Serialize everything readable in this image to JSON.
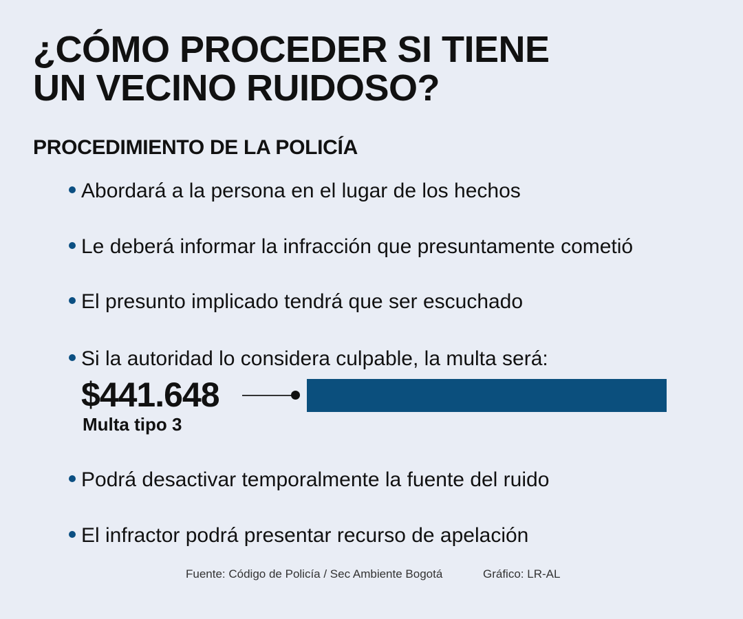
{
  "header": {
    "title_line1": "¿CÓMO PROCEDER SI TIENE",
    "title_line2": "UN VECINO RUIDOSO?",
    "subtitle": "PROCEDIMIENTO DE LA POLICÍA"
  },
  "procedure": {
    "items": [
      "Abordará a la persona en el lugar de los hechos",
      "Le deberá informar la infracción que presuntamente cometió",
      "El presunto implicado tendrá que ser escuchado",
      "Si la autoridad lo considera culpable, la multa será:",
      "Podrá desactivar temporalmente la fuente del ruido",
      "El infractor podrá presentar recurso de apelación"
    ]
  },
  "fine": {
    "amount": "$441.648",
    "type": "Multa tipo 3"
  },
  "footer": {
    "source": "Fuente: Código de Policía / Sec Ambiente Bogotá",
    "credit": "Gráfico: LR-AL"
  },
  "colors": {
    "background": "#e9edf5",
    "accent": "#0b4f7d",
    "text": "#111111"
  }
}
